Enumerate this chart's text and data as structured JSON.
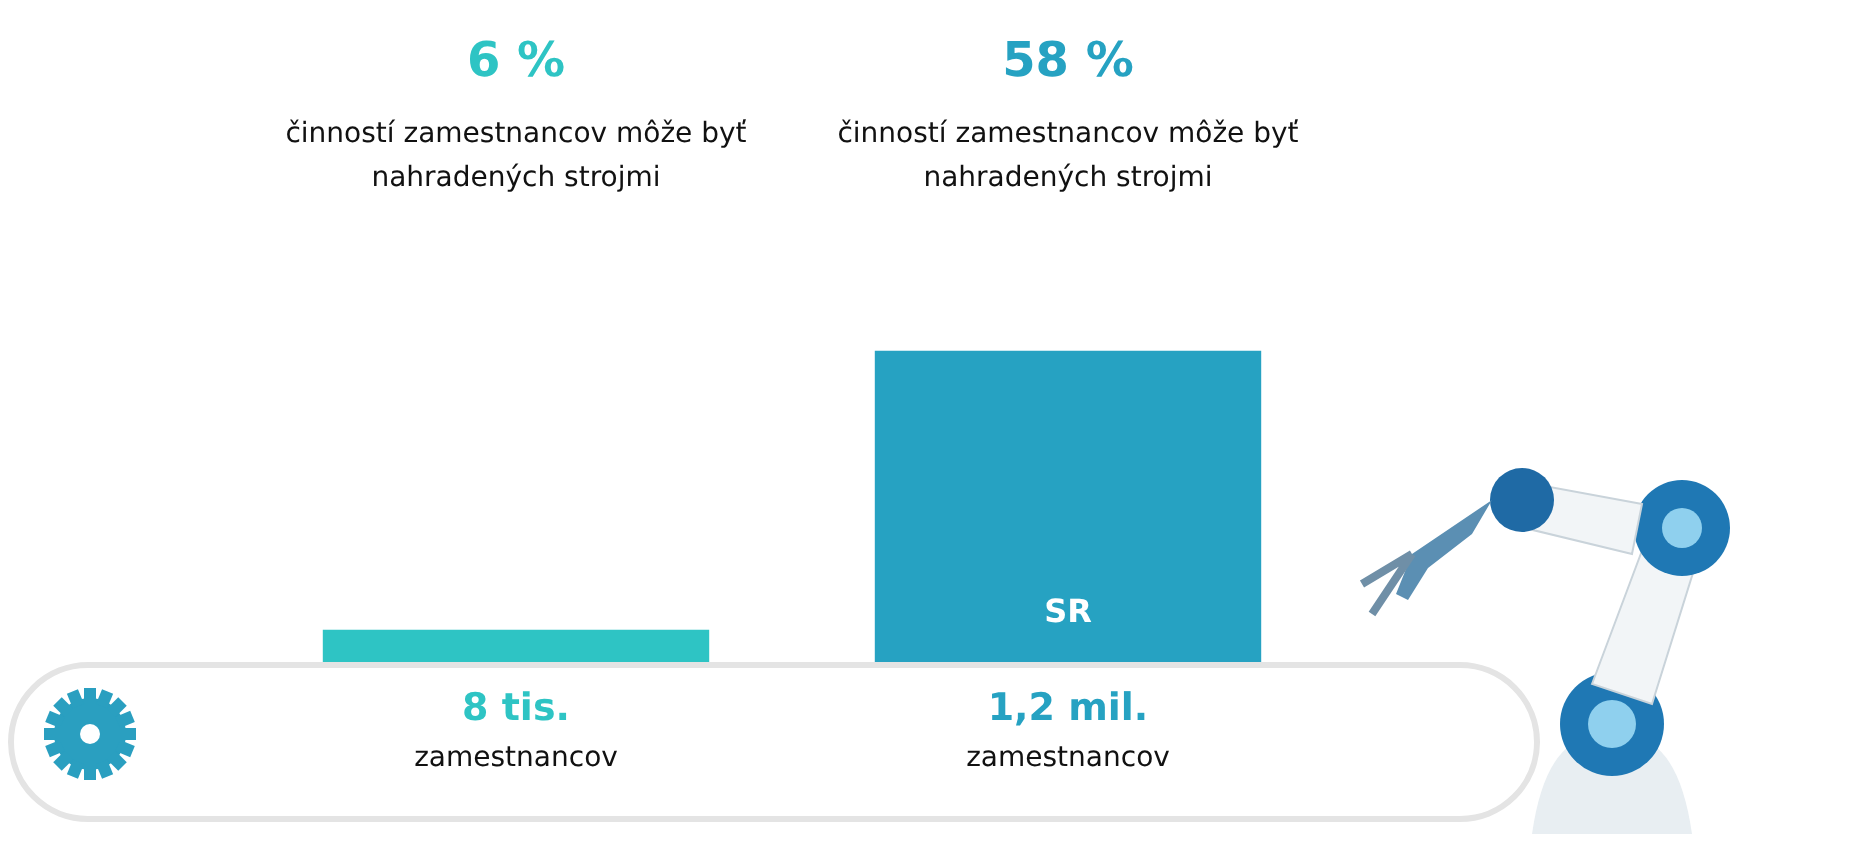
{
  "chart_data": {
    "type": "bar",
    "categories": [
      null,
      "SR"
    ],
    "values": [
      6,
      58
    ],
    "colors": [
      "#2ec4c4",
      "#26a2c2"
    ],
    "value_labels": [
      "6 %",
      "58 %"
    ],
    "annotations": [
      "činností zamestnancov môže byť nahradených strojmi",
      "činností zamestnancov môže byť nahradených strojmi",
      "8 tis.",
      "1,2 mil.",
      "zamestnancov",
      "zamestnancov"
    ],
    "legend": false
  }
}
